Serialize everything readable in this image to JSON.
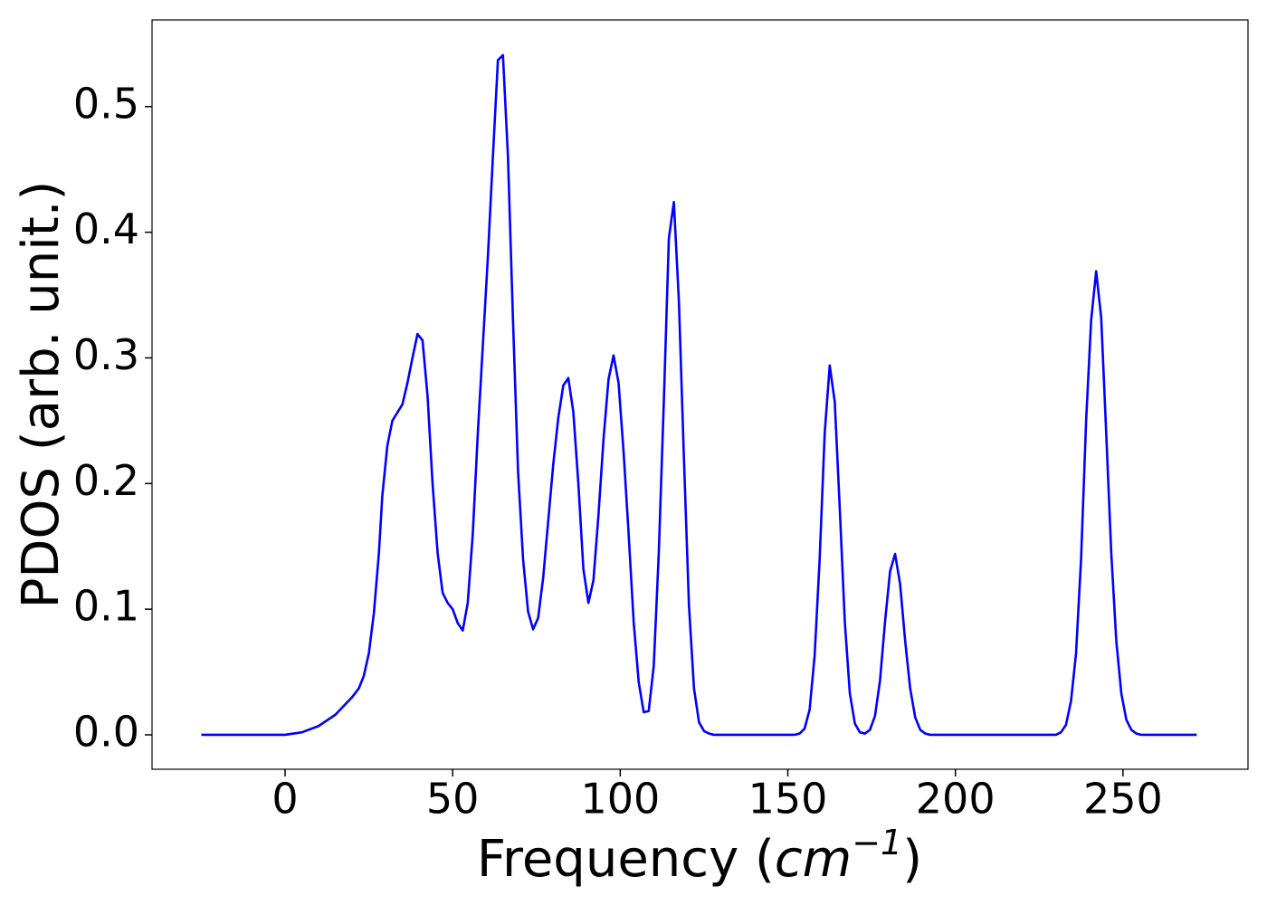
{
  "chart_data": {
    "type": "line",
    "x_label": [
      "Frequency (",
      "cm",
      "−1",
      ")"
    ],
    "y_label": "PDOS (arb. unit.)",
    "xlim": [
      -39.7,
      287.3
    ],
    "ylim": [
      -0.0274,
      0.569
    ],
    "xticks": [
      0,
      50,
      100,
      150,
      200,
      250
    ],
    "yticks": [
      {
        "value": 0,
        "label": "0.0"
      },
      0.1,
      0.2,
      0.3,
      0.4,
      0.5
    ],
    "grid": false,
    "series": [
      {
        "color": "#0000ff",
        "x": [
          -25,
          0,
          5,
          10,
          15,
          20,
          22,
          23.5,
          25,
          26.5,
          28,
          29,
          30.5,
          32,
          35,
          36.5,
          38,
          39.5,
          41,
          42.5,
          44,
          45.5,
          47,
          48.5,
          50,
          51.5,
          53,
          54.5,
          56,
          57.5,
          59,
          60.5,
          62,
          63.5,
          65,
          66.5,
          68,
          69.5,
          71,
          72.5,
          74,
          75.5,
          77,
          78.5,
          80,
          81.5,
          83,
          84.5,
          86,
          87.5,
          89,
          90.5,
          92,
          93.5,
          95,
          96.5,
          98,
          99.5,
          101,
          102.5,
          104,
          105.5,
          107,
          108.5,
          110,
          111.5,
          113,
          114.5,
          116,
          117.5,
          119,
          120.5,
          122,
          123.5,
          125,
          126.5,
          128,
          152,
          153.5,
          155,
          156.5,
          158,
          159.5,
          161,
          162.5,
          164,
          165.5,
          167,
          168.5,
          170,
          171.5,
          173,
          174.5,
          176,
          177.5,
          179,
          180.5,
          182,
          183.5,
          185,
          186.5,
          188,
          189.5,
          191,
          192.5,
          230,
          231.5,
          233,
          234.5,
          236,
          237.5,
          239,
          240.5,
          242,
          243.5,
          245,
          246.5,
          248,
          249.5,
          251,
          252.5,
          254,
          255.5,
          272
        ],
        "values": [
          0,
          0,
          0.002,
          0.007,
          0.016,
          0.03,
          0.037,
          0.047,
          0.065,
          0.097,
          0.145,
          0.19,
          0.23,
          0.25,
          0.263,
          0.28,
          0.3,
          0.319,
          0.314,
          0.27,
          0.2,
          0.145,
          0.113,
          0.105,
          0.1,
          0.089,
          0.083,
          0.105,
          0.16,
          0.24,
          0.31,
          0.38,
          0.46,
          0.537,
          0.541,
          0.46,
          0.33,
          0.21,
          0.14,
          0.098,
          0.084,
          0.093,
          0.125,
          0.17,
          0.215,
          0.252,
          0.278,
          0.284,
          0.257,
          0.2,
          0.132,
          0.105,
          0.123,
          0.175,
          0.235,
          0.283,
          0.302,
          0.28,
          0.225,
          0.16,
          0.09,
          0.042,
          0.018,
          0.019,
          0.055,
          0.145,
          0.265,
          0.395,
          0.424,
          0.345,
          0.22,
          0.103,
          0.037,
          0.01,
          0.003,
          0.001,
          0,
          0,
          0.001,
          0.005,
          0.02,
          0.063,
          0.14,
          0.24,
          0.294,
          0.265,
          0.18,
          0.09,
          0.033,
          0.009,
          0.002,
          0.001,
          0.004,
          0.015,
          0.043,
          0.09,
          0.13,
          0.144,
          0.12,
          0.075,
          0.037,
          0.014,
          0.004,
          0.001,
          0,
          0,
          0.002,
          0.008,
          0.027,
          0.065,
          0.14,
          0.25,
          0.33,
          0.369,
          0.332,
          0.24,
          0.145,
          0.075,
          0.033,
          0.012,
          0.004,
          0.001,
          0,
          0
        ]
      }
    ]
  }
}
